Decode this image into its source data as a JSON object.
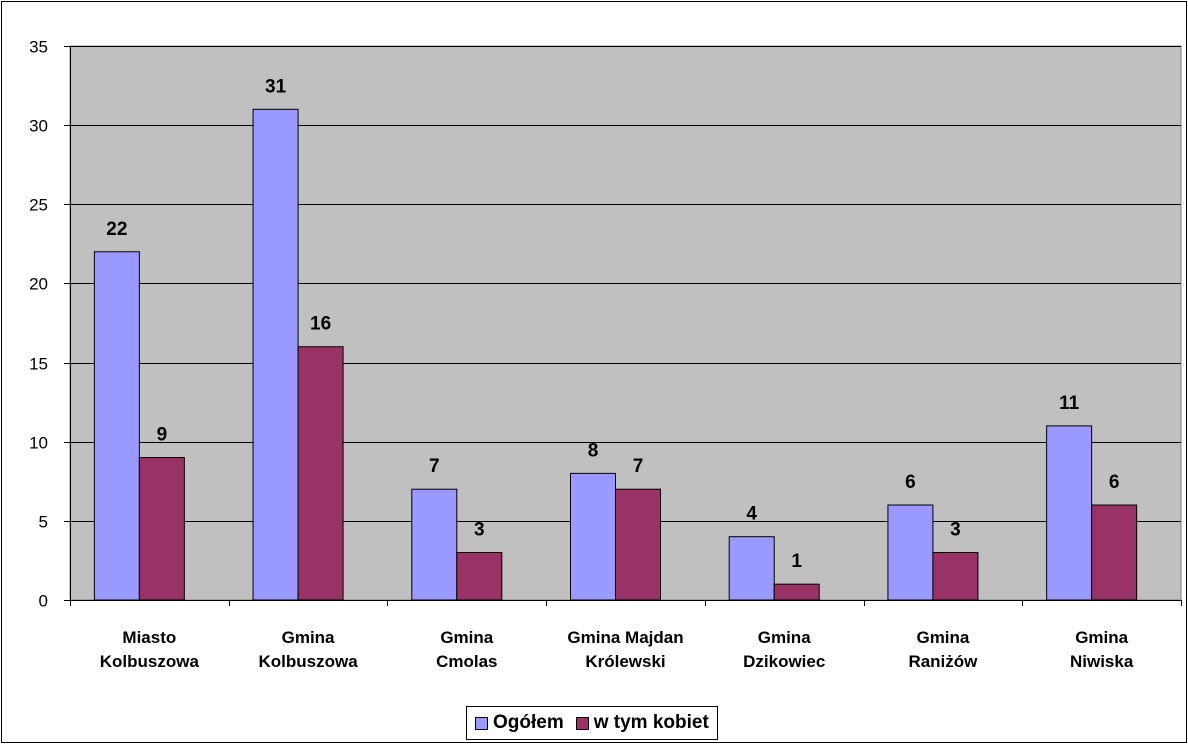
{
  "chart_data": {
    "type": "bar",
    "title": "",
    "xlabel": "",
    "ylabel": "",
    "ylim": [
      0,
      35
    ],
    "yticks": [
      0,
      5,
      10,
      15,
      20,
      25,
      30,
      35
    ],
    "grid": "horizontal",
    "legend_position": "bottom",
    "plot_background": "#c0c0c0",
    "categories": [
      [
        "Miasto",
        "Kolbuszowa"
      ],
      [
        "Gmina",
        "Kolbuszowa"
      ],
      [
        "Gmina",
        "Cmolas"
      ],
      [
        "Gmina Majdan",
        "Królewski"
      ],
      [
        "Gmina",
        "Dzikowiec"
      ],
      [
        "Gmina",
        "Raniżów"
      ],
      [
        "Gmina",
        "Niwiska"
      ]
    ],
    "series": [
      {
        "name": "Ogółem",
        "color": "#9999ff",
        "values": [
          22,
          31,
          7,
          8,
          4,
          6,
          11
        ]
      },
      {
        "name": "w tym kobiet",
        "color": "#993366",
        "values": [
          9,
          16,
          3,
          7,
          1,
          3,
          6
        ]
      }
    ]
  }
}
